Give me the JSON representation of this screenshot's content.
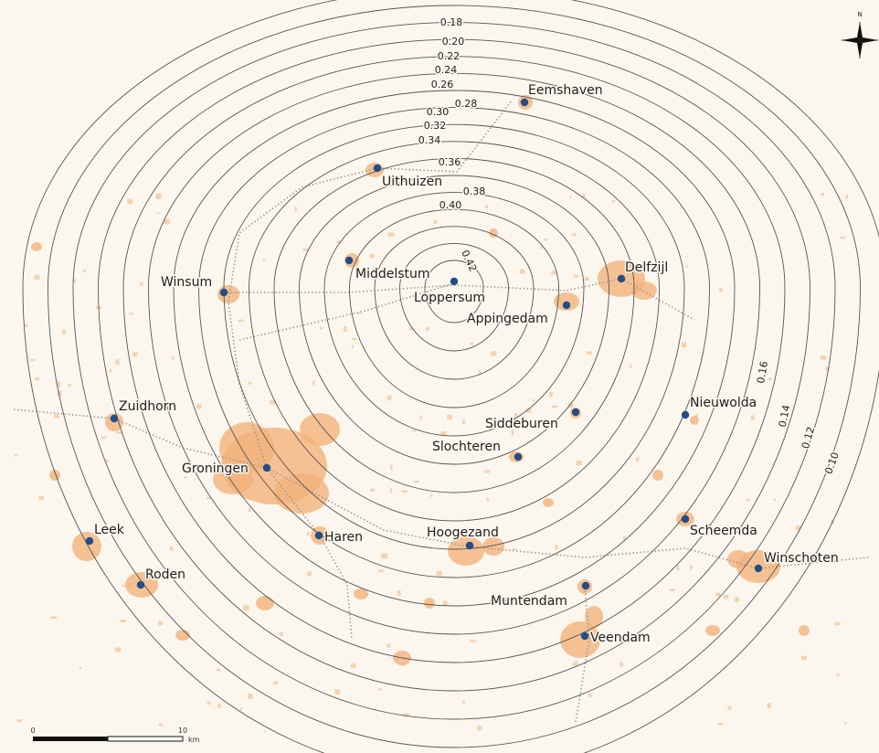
{
  "north_arrow": {
    "label": "N",
    "icon": "compass-star-icon"
  },
  "scale_bar": {
    "start_label": "0",
    "end_label": "10",
    "unit_label": "km"
  },
  "contour_levels": [
    "0.10",
    "0.12",
    "0.14",
    "0.16",
    "0.18",
    "0.20",
    "0.22",
    "0.24",
    "0.26",
    "0.28",
    "0.30",
    "0.32",
    "0.34",
    "0.36",
    "0.38",
    "0.40",
    "0.42"
  ],
  "cities": [
    {
      "name": "Eemshaven"
    },
    {
      "name": "Uithuizen"
    },
    {
      "name": "Middelstum"
    },
    {
      "name": "Loppersum"
    },
    {
      "name": "Winsum"
    },
    {
      "name": "Appingedam"
    },
    {
      "name": "Delfzijl"
    },
    {
      "name": "Zuidhorn"
    },
    {
      "name": "Siddeburen"
    },
    {
      "name": "Nieuwolda"
    },
    {
      "name": "Slochteren"
    },
    {
      "name": "Groningen"
    },
    {
      "name": "Leek"
    },
    {
      "name": "Haren"
    },
    {
      "name": "Hoogezand"
    },
    {
      "name": "Scheemda"
    },
    {
      "name": "Winschoten"
    },
    {
      "name": "Roden"
    },
    {
      "name": "Muntendam"
    },
    {
      "name": "Veendam"
    }
  ],
  "colors": {
    "background": "#fcf7ee",
    "urban": "#f2b27a",
    "contour": "#555555",
    "city_dot": "#234d85",
    "railway": "#9a9a9a"
  }
}
